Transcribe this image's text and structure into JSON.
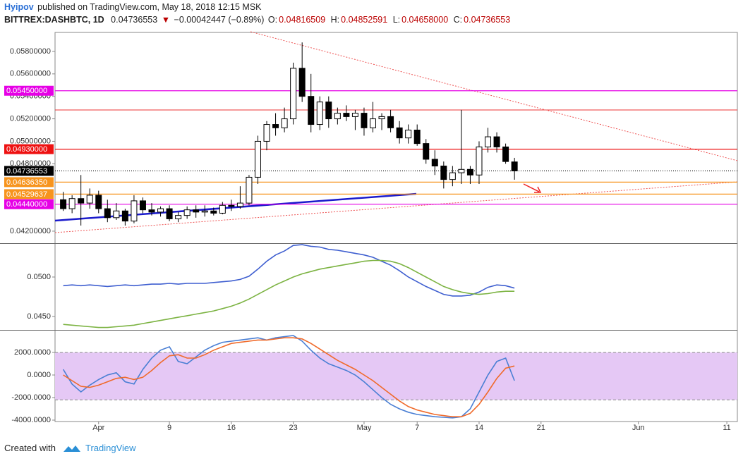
{
  "header": {
    "author": "Hyipov",
    "published": "published on TradingView.com, May 18, 2018 12:15 MSK",
    "symbol": "BITTREX:DASHBTC, 1D",
    "last": "0.04736553",
    "arrow": "▼",
    "change": "−0.00042447 (−0.89%)",
    "ohlc": [
      {
        "label": "O:",
        "value": "0.04816509"
      },
      {
        "label": "H:",
        "value": "0.04852591"
      },
      {
        "label": "L:",
        "value": "0.04658000"
      },
      {
        "label": "C:",
        "value": "0.04736553"
      }
    ]
  },
  "footer": {
    "created": "Created with",
    "brand": "TradingView"
  },
  "chart_data": [
    {
      "type": "candlestick",
      "categories": [
        null,
        null,
        null,
        null,
        "Apr",
        null,
        null,
        null,
        null,
        null,
        null,
        null,
        "9",
        null,
        null,
        null,
        null,
        null,
        null,
        "16",
        null,
        null,
        null,
        null,
        null,
        null,
        "23",
        null,
        null,
        null,
        null,
        null,
        null,
        null,
        "May",
        null,
        null,
        null,
        null,
        null,
        "7",
        null,
        null,
        null,
        null,
        null,
        null,
        "14",
        null,
        null,
        null,
        null,
        null,
        null,
        "21",
        null,
        null,
        null,
        null,
        null,
        null,
        null,
        null,
        null,
        null,
        "Jun",
        null,
        null,
        null,
        null,
        null,
        null,
        null,
        null,
        null,
        "11"
      ],
      "open": [
        0.0448,
        0.044,
        0.0449,
        0.0445,
        0.0452,
        0.044,
        0.0432,
        0.0438,
        0.0429,
        0.0447,
        0.0439,
        0.0437,
        0.044,
        0.0431,
        0.0434,
        0.0439,
        0.0437,
        0.0438,
        0.0436,
        0.0443,
        0.0442,
        0.0445,
        0.0468,
        0.05,
        0.0515,
        0.0512,
        0.052,
        0.0565,
        0.054,
        0.0515,
        0.0535,
        0.052,
        0.0525,
        0.0522,
        0.0525,
        0.0512,
        0.052,
        0.0522,
        0.0512,
        0.0503,
        0.051,
        0.0498,
        0.0484,
        0.0478,
        0.0466,
        0.0472,
        0.0475,
        0.047,
        0.0495,
        0.0504,
        0.0495,
        0.04816509,
        null,
        null,
        null,
        null,
        null,
        null,
        null,
        null,
        null,
        null,
        null,
        null,
        null,
        null,
        null,
        null,
        null,
        null,
        null,
        null,
        null,
        null,
        null,
        null
      ],
      "high": [
        0.0455,
        0.0452,
        0.047,
        0.0458,
        0.0456,
        0.0448,
        0.0445,
        0.044,
        0.0452,
        0.045,
        0.0445,
        0.0442,
        0.0443,
        0.0437,
        0.0442,
        0.0443,
        0.0443,
        0.0441,
        0.0446,
        0.0448,
        0.046,
        0.047,
        0.0505,
        0.0518,
        0.0525,
        0.053,
        0.057,
        0.0588,
        0.056,
        0.054,
        0.054,
        0.053,
        0.0532,
        0.0528,
        0.053,
        0.0535,
        0.0525,
        0.0528,
        0.0518,
        0.0515,
        0.0515,
        0.0502,
        0.0492,
        0.0482,
        0.0478,
        0.0528,
        0.0478,
        0.05,
        0.0512,
        0.0508,
        0.0498,
        0.04852591,
        null,
        null,
        null,
        null,
        null,
        null,
        null,
        null,
        null,
        null,
        null,
        null,
        null,
        null,
        null,
        null,
        null,
        null,
        null,
        null,
        null,
        null,
        null,
        null
      ],
      "low": [
        0.0438,
        0.0436,
        0.0425,
        0.044,
        0.0436,
        0.0428,
        0.043,
        0.0425,
        0.0427,
        0.0436,
        0.0434,
        0.0433,
        0.0429,
        0.0428,
        0.0431,
        0.0432,
        0.0433,
        0.0434,
        0.0435,
        0.0438,
        0.044,
        0.0443,
        0.0462,
        0.0492,
        0.0505,
        0.0508,
        0.0515,
        0.0535,
        0.0508,
        0.051,
        0.0512,
        0.0515,
        0.0518,
        0.051,
        0.0505,
        0.0508,
        0.051,
        0.0508,
        0.0498,
        0.0498,
        0.0496,
        0.048,
        0.047,
        0.0458,
        0.046,
        0.0462,
        0.0462,
        0.0462,
        0.049,
        0.049,
        0.048,
        0.04658,
        null,
        null,
        null,
        null,
        null,
        null,
        null,
        null,
        null,
        null,
        null,
        null,
        null,
        null,
        null,
        null,
        null,
        null,
        null,
        null,
        null,
        null,
        null,
        null
      ],
      "close": [
        0.044,
        0.0449,
        0.0445,
        0.0452,
        0.044,
        0.0432,
        0.0438,
        0.0429,
        0.0447,
        0.0439,
        0.0437,
        0.044,
        0.0431,
        0.0434,
        0.0439,
        0.0437,
        0.0438,
        0.0436,
        0.0443,
        0.0442,
        0.0445,
        0.0468,
        0.05,
        0.0515,
        0.0512,
        0.052,
        0.0565,
        0.054,
        0.0515,
        0.0535,
        0.052,
        0.0525,
        0.0522,
        0.0525,
        0.0512,
        0.052,
        0.0522,
        0.0512,
        0.0503,
        0.051,
        0.0498,
        0.0484,
        0.0478,
        0.0466,
        0.0472,
        0.0475,
        0.047,
        0.0495,
        0.0504,
        0.0495,
        0.0482,
        0.04736553,
        null,
        null,
        null,
        null,
        null,
        null,
        null,
        null,
        null,
        null,
        null,
        null,
        null,
        null,
        null,
        null,
        null,
        null,
        null,
        null,
        null,
        null,
        null,
        null
      ],
      "up_color": "#ffffff",
      "down_color": "#000000",
      "ylim": [
        0.04093,
        0.05944
      ],
      "yticks": [
        {
          "value": 0.042,
          "label": "0.04200000"
        },
        {
          "value": 0.048,
          "label": "0.04800000"
        },
        {
          "value": 0.05,
          "label": "0.05000000"
        },
        {
          "value": 0.052,
          "label": "0.05200000"
        },
        {
          "value": 0.054,
          "label": "0.05400000"
        },
        {
          "value": 0.056,
          "label": "0.05600000"
        },
        {
          "value": 0.058,
          "label": "0.05800000"
        }
      ],
      "levels": [
        {
          "value": 0.0545,
          "label": "0.05450000",
          "color": "#e600e6"
        },
        {
          "value": 0.0493,
          "label": "0.04930000",
          "color": "#ee1111"
        },
        {
          "value": 0.04736553,
          "label": "0.04736553",
          "color": "#000000"
        },
        {
          "value": 0.0463635,
          "label": "0.04636350",
          "color": "#f7941d"
        },
        {
          "value": 0.04529637,
          "label": "0.04529637",
          "color": "#f7941d"
        },
        {
          "value": 0.0444,
          "label": "0.04440000",
          "color": "#e600e6"
        }
      ]
    },
    {
      "type": "line",
      "ylim": [
        0.0433,
        0.0542
      ],
      "yticks": [
        {
          "value": 0.05,
          "label": "0.0500"
        },
        {
          "value": 0.045,
          "label": "0.0450"
        }
      ],
      "series": [
        {
          "color": "#3f5fd0",
          "values": [
            0.0489,
            0.049,
            0.0489,
            0.049,
            0.0489,
            0.0488,
            0.0489,
            0.049,
            0.0489,
            0.049,
            0.0491,
            0.0491,
            0.0492,
            0.0491,
            0.0492,
            0.0492,
            0.0492,
            0.0493,
            0.0494,
            0.0495,
            0.0497,
            0.0501,
            0.051,
            0.052,
            0.0528,
            0.0533,
            0.054,
            0.0541,
            0.0539,
            0.0538,
            0.0535,
            0.0534,
            0.0532,
            0.053,
            0.0528,
            0.0525,
            0.052,
            0.0515,
            0.0508,
            0.05,
            0.0494,
            0.0488,
            0.0483,
            0.0478,
            0.0476,
            0.0476,
            0.0477,
            0.0481,
            0.0487,
            0.049,
            0.0489,
            0.0486,
            null,
            null,
            null,
            null,
            null,
            null,
            null,
            null,
            null,
            null,
            null,
            null,
            null,
            null,
            null,
            null,
            null,
            null,
            null,
            null,
            null,
            null,
            null,
            null
          ]
        },
        {
          "color": "#7cb342",
          "values": [
            0.044,
            0.0439,
            0.0438,
            0.0437,
            0.0436,
            0.0436,
            0.0437,
            0.0438,
            0.0439,
            0.0441,
            0.0443,
            0.0445,
            0.0447,
            0.0449,
            0.0451,
            0.0453,
            0.0455,
            0.0457,
            0.046,
            0.0463,
            0.0467,
            0.0472,
            0.0478,
            0.0484,
            0.049,
            0.0495,
            0.05,
            0.0504,
            0.0507,
            0.051,
            0.0512,
            0.0514,
            0.0516,
            0.0518,
            0.052,
            0.0521,
            0.0521,
            0.052,
            0.0517,
            0.0512,
            0.0506,
            0.05,
            0.0494,
            0.0488,
            0.0484,
            0.0481,
            0.0479,
            0.0478,
            0.0479,
            0.0481,
            0.0482,
            0.0482,
            null,
            null,
            null,
            null,
            null,
            null,
            null,
            null,
            null,
            null,
            null,
            null,
            null,
            null,
            null,
            null,
            null,
            null,
            null,
            null,
            null,
            null,
            null,
            null
          ]
        }
      ]
    },
    {
      "type": "line",
      "ylim": [
        -4125,
        3875
      ],
      "yticks": [
        {
          "value": 2000,
          "label": "2000.0000"
        },
        {
          "value": 0,
          "label": "0.0000"
        },
        {
          "value": -2000,
          "label": "-2000.0000"
        },
        {
          "value": -4000,
          "label": "-4000.0000"
        }
      ],
      "band": {
        "from": -2200,
        "to": 2000,
        "color": "#e5c8f5"
      },
      "series": [
        {
          "color": "#4a7fd4",
          "values": [
            500,
            -800,
            -1500,
            -900,
            -400,
            0,
            200,
            -600,
            -800,
            500,
            1500,
            2200,
            2500,
            1200,
            1000,
            1600,
            2200,
            2600,
            2900,
            3000,
            3100,
            3200,
            3300,
            3100,
            3300,
            3400,
            3500,
            3000,
            2200,
            1500,
            1000,
            700,
            400,
            0,
            -600,
            -1300,
            -2000,
            -2600,
            -3000,
            -3300,
            -3500,
            -3600,
            -3700,
            -3750,
            -3800,
            -3700,
            -3000,
            -1500,
            0,
            1200,
            1500,
            -500,
            null,
            null,
            null,
            null,
            null,
            null,
            null,
            null,
            null,
            null,
            null,
            null,
            null,
            null,
            null,
            null,
            null,
            null,
            null,
            null,
            null,
            null,
            null,
            null
          ]
        },
        {
          "color": "#f06a2a",
          "values": [
            0,
            -500,
            -1000,
            -1100,
            -900,
            -600,
            -300,
            -200,
            -400,
            -200,
            400,
            1100,
            1700,
            1800,
            1500,
            1500,
            1800,
            2200,
            2500,
            2800,
            2900,
            3000,
            3100,
            3100,
            3200,
            3300,
            3300,
            3200,
            2800,
            2300,
            1800,
            1300,
            900,
            500,
            0,
            -500,
            -1100,
            -1700,
            -2300,
            -2800,
            -3100,
            -3300,
            -3500,
            -3600,
            -3700,
            -3700,
            -3400,
            -2600,
            -1500,
            -300,
            600,
            800,
            null,
            null,
            null,
            null,
            null,
            null,
            null,
            null,
            null,
            null,
            null,
            null,
            null,
            null,
            null,
            null,
            null,
            null,
            null,
            null,
            null,
            null,
            null,
            null
          ]
        }
      ]
    }
  ]
}
